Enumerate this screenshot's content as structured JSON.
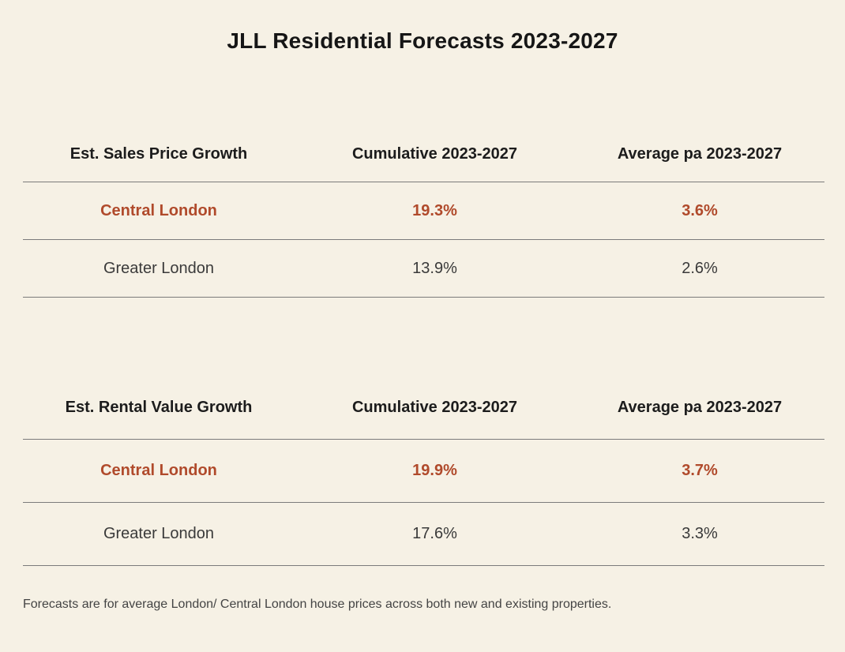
{
  "title": "JLL Residential Forecasts 2023-2027",
  "colors": {
    "background": "#f6f1e5",
    "highlight": "#b04a2b",
    "rule": "#7b7b7b"
  },
  "chart_data": [
    {
      "type": "table",
      "columns": [
        "Est. Sales Price Growth",
        "Cumulative 2023-2027",
        "Average pa 2023-2027"
      ],
      "rows": [
        [
          "Central London",
          "19.3%",
          "3.6%"
        ],
        [
          "Greater London",
          "13.9%",
          "2.6%"
        ]
      ],
      "highlighted_row": "Central London"
    },
    {
      "type": "table",
      "columns": [
        "Est. Rental Value Growth",
        "Cumulative 2023-2027",
        "Average pa 2023-2027"
      ],
      "rows": [
        [
          "Central London",
          "19.9%",
          "3.7%"
        ],
        [
          "Greater London",
          "17.6%",
          "3.3%"
        ]
      ],
      "highlighted_row": "Central London"
    }
  ],
  "footnote": "Forecasts are for average London/ Central London house prices across both new and existing properties."
}
